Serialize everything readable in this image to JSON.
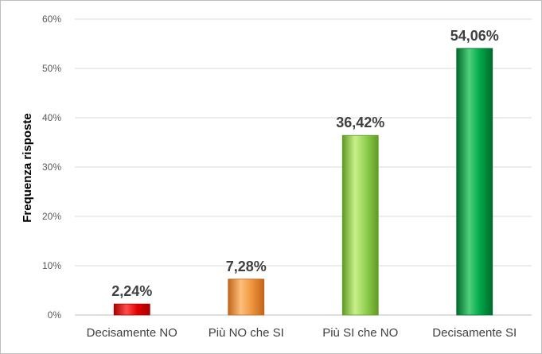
{
  "chart_data": {
    "type": "bar",
    "categories": [
      "Decisamente NO",
      "Più NO che SI",
      "Più SI che NO",
      "Decisamente SI"
    ],
    "values": [
      2.24,
      7.28,
      36.42,
      54.06
    ],
    "data_labels": [
      "2,24%",
      "7,28%",
      "36,42%",
      "54,06%"
    ],
    "ylabel": "Frequenza risposte",
    "ylim": [
      0,
      60
    ],
    "yticks": [
      0,
      10,
      20,
      30,
      40,
      50,
      60
    ],
    "ytick_labels": [
      "0%",
      "10%",
      "20%",
      "30%",
      "40%",
      "50%",
      "60%"
    ],
    "grid": true,
    "legend": "none",
    "colors": [
      {
        "light": "#ff4d4d",
        "mid": "#e00000",
        "dark": "#a80000"
      },
      {
        "light": "#fbbf7a",
        "mid": "#f09640",
        "dark": "#c0651a"
      },
      {
        "light": "#c9ef8a",
        "mid": "#92d050",
        "dark": "#5f9a24"
      },
      {
        "light": "#4fd07a",
        "mid": "#00a84a",
        "dark": "#006b2c"
      }
    ],
    "gridline_color": "#d9d9d9"
  }
}
